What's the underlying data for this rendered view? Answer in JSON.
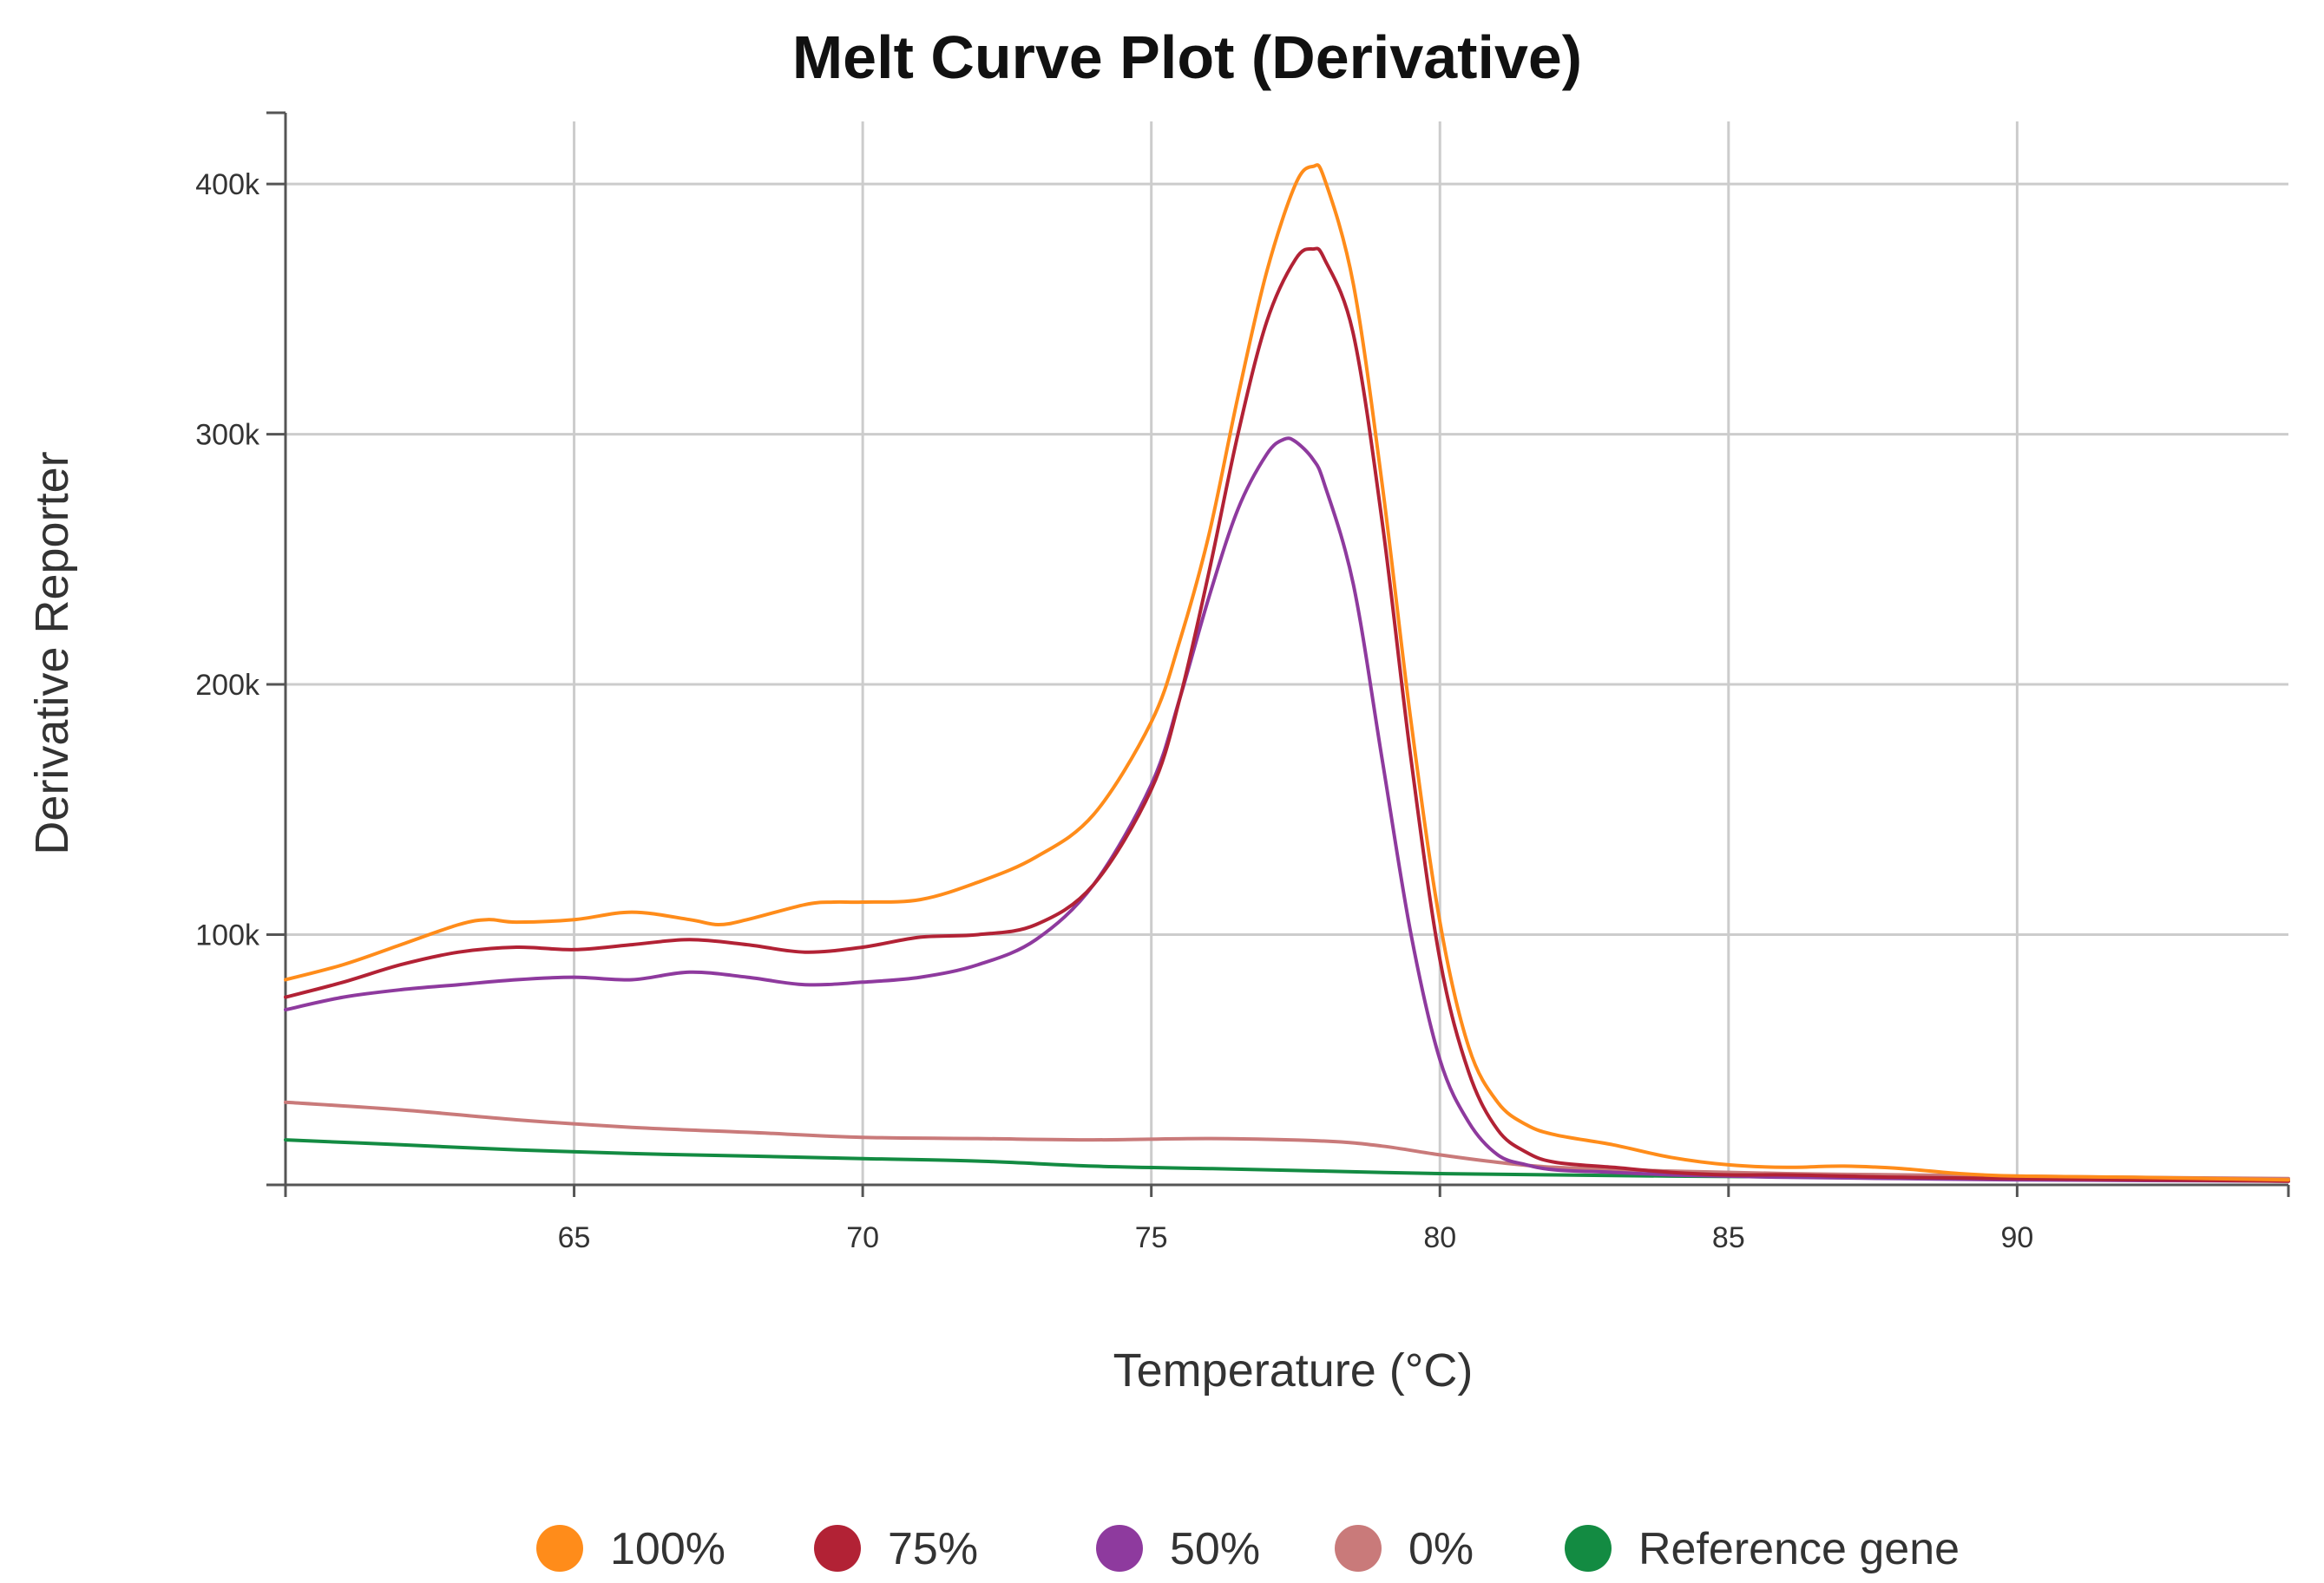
{
  "chart_data": {
    "type": "line",
    "title": "Melt Curve Plot (Derivative)",
    "xlabel": "Temperature (°C)",
    "ylabel": "Derivative Reporter",
    "xlim": [
      60,
      94.7
    ],
    "ylim": [
      0,
      425000
    ],
    "x_ticks": [
      65,
      70,
      75,
      80,
      85,
      90
    ],
    "x_tick_labels": [
      "65",
      "70",
      "75",
      "80",
      "85",
      "90"
    ],
    "y_ticks": [
      100000,
      200000,
      300000,
      400000
    ],
    "y_tick_labels": [
      "100k",
      "200k",
      "300k",
      "400k"
    ],
    "grid": true,
    "legend_position": "bottom",
    "series": [
      {
        "name": "100%",
        "color": "#FF8C1A",
        "x": [
          60,
          61,
          62,
          63,
          63.5,
          64,
          65,
          66,
          67,
          67.5,
          68,
          69,
          69.5,
          70,
          71,
          72,
          73,
          74,
          75,
          75.5,
          76,
          76.5,
          77,
          77.5,
          77.8,
          78,
          78.5,
          79,
          79.5,
          80,
          80.5,
          81,
          81.5,
          82,
          83,
          84,
          85,
          86,
          87,
          88,
          89,
          90,
          92,
          94.7
        ],
        "values": [
          82000,
          88000,
          96000,
          104000,
          106000,
          105000,
          106000,
          109000,
          106000,
          104000,
          106000,
          112000,
          113000,
          113000,
          114000,
          121000,
          131000,
          148000,
          185000,
          218000,
          260000,
          315000,
          365000,
          400000,
          407000,
          402000,
          360000,
          280000,
          185000,
          105000,
          55000,
          33000,
          24000,
          20000,
          16000,
          11000,
          8000,
          7000,
          7500,
          6500,
          4500,
          3500,
          3000,
          2000
        ]
      },
      {
        "name": "75%",
        "color": "#B22235",
        "x": [
          60,
          61,
          62,
          63,
          64,
          65,
          66,
          67,
          68,
          69,
          70,
          71,
          72,
          73,
          74,
          75,
          75.5,
          76,
          76.5,
          77,
          77.5,
          77.8,
          78,
          78.5,
          79,
          79.5,
          80,
          80.5,
          81,
          81.5,
          82,
          83,
          84,
          85,
          86,
          87,
          88,
          90,
          94.7
        ],
        "values": [
          75000,
          81000,
          88000,
          93000,
          95000,
          94000,
          96000,
          98000,
          96000,
          93000,
          95000,
          99000,
          100000,
          104000,
          120000,
          158000,
          195000,
          245000,
          300000,
          345000,
          370000,
          374000,
          370000,
          340000,
          265000,
          170000,
          90000,
          45000,
          22000,
          13000,
          9000,
          7000,
          5000,
          4000,
          4000,
          3500,
          3000,
          2500,
          1500
        ]
      },
      {
        "name": "50%",
        "color": "#8E3A9E",
        "x": [
          60,
          61,
          62,
          63,
          64,
          65,
          66,
          67,
          68,
          69,
          70,
          71,
          72,
          73,
          74,
          75,
          75.5,
          76,
          76.5,
          77,
          77.3,
          77.5,
          77.8,
          78,
          78.5,
          79,
          79.5,
          80,
          80.5,
          81,
          81.5,
          82,
          83,
          84,
          85,
          86,
          88,
          90,
          94.7
        ],
        "values": [
          70000,
          75000,
          78000,
          80000,
          82000,
          83000,
          82000,
          85000,
          83000,
          80000,
          81000,
          83000,
          88000,
          98000,
          120000,
          160000,
          195000,
          235000,
          270000,
          292000,
          298000,
          297000,
          290000,
          280000,
          240000,
          170000,
          100000,
          50000,
          25000,
          12000,
          8000,
          6000,
          5000,
          4000,
          3500,
          3000,
          2500,
          2000,
          1500
        ]
      },
      {
        "name": "0%",
        "color": "#C97A7A",
        "x": [
          60,
          62,
          64,
          66,
          68,
          70,
          72,
          74,
          76,
          78,
          79,
          80,
          81,
          82,
          84,
          86,
          88,
          90,
          92,
          94.7
        ],
        "values": [
          33000,
          30000,
          26000,
          23000,
          21000,
          19000,
          18500,
          18000,
          18500,
          17500,
          15500,
          12000,
          9000,
          7000,
          5500,
          4500,
          4000,
          3500,
          3000,
          2500
        ]
      },
      {
        "name": "Reference gene",
        "color": "#138B42",
        "x": [
          60,
          62,
          64,
          66,
          68,
          70,
          72,
          74,
          76,
          78,
          80,
          82,
          84,
          86,
          88,
          90,
          92,
          94.7
        ],
        "values": [
          18000,
          16000,
          14000,
          12500,
          11500,
          10500,
          9500,
          7500,
          6500,
          5500,
          4500,
          4000,
          3500,
          3200,
          3000,
          2800,
          2500,
          2000
        ]
      }
    ]
  }
}
